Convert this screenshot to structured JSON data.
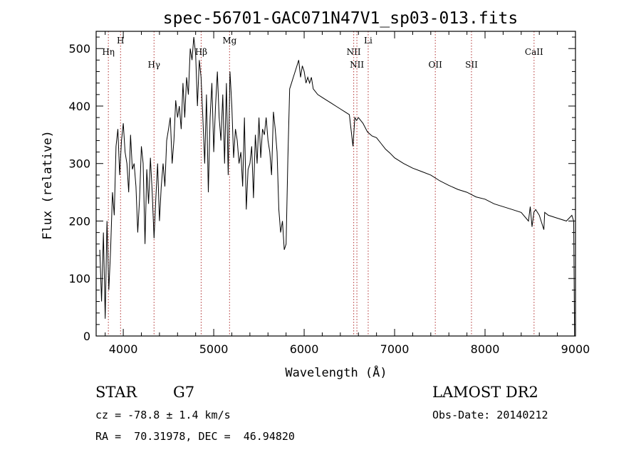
{
  "chart_data": {
    "type": "line",
    "title": "spec-56701-GAC071N47V1_sp03-013.fits",
    "xlabel": "Wavelength (Å)",
    "ylabel": "Flux (relative)",
    "xlim": [
      3700,
      9000
    ],
    "ylim": [
      0,
      530
    ],
    "x_ticks": [
      4000,
      5000,
      6000,
      7000,
      8000,
      9000
    ],
    "y_ticks": [
      0,
      100,
      200,
      300,
      400,
      500
    ],
    "grid": false,
    "line_color": "#000000",
    "marker_color": "#b03030",
    "series": [
      {
        "x": [
          3740,
          3760,
          3780,
          3800,
          3820,
          3840,
          3860,
          3880,
          3900,
          3920,
          3940,
          3960,
          3980,
          4000,
          4020,
          4040,
          4060,
          4080,
          4100,
          4120,
          4140,
          4160,
          4180,
          4200,
          4220,
          4240,
          4260,
          4280,
          4300,
          4320,
          4340,
          4360,
          4380,
          4400,
          4420,
          4440,
          4460,
          4480,
          4500,
          4520,
          4540,
          4560,
          4580,
          4600,
          4620,
          4640,
          4660,
          4680,
          4700,
          4720,
          4740,
          4760,
          4780,
          4800,
          4820,
          4840,
          4860,
          4880,
          4900,
          4920,
          4940,
          4960,
          4980,
          5000,
          5020,
          5040,
          5060,
          5080,
          5100,
          5120,
          5140,
          5160,
          5180,
          5200,
          5220,
          5240,
          5260,
          5280,
          5300,
          5320,
          5340,
          5360,
          5380,
          5400,
          5420,
          5440,
          5460,
          5480,
          5500,
          5520,
          5540,
          5560,
          5580,
          5600,
          5620,
          5640,
          5660,
          5680,
          5700,
          5720,
          5740,
          5760,
          5780,
          5800,
          5820,
          5840,
          5860,
          5880,
          5900,
          5920,
          5940,
          5960,
          5980,
          6000,
          6020,
          6040,
          6060,
          6080,
          6100,
          6150,
          6200,
          6250,
          6300,
          6350,
          6400,
          6450,
          6500,
          6540,
          6560,
          6580,
          6600,
          6650,
          6700,
          6750,
          6800,
          6850,
          6900,
          6950,
          7000,
          7100,
          7200,
          7300,
          7400,
          7500,
          7600,
          7700,
          7800,
          7900,
          8000,
          8100,
          8200,
          8300,
          8400,
          8480,
          8500,
          8520,
          8540,
          8560,
          8600,
          8650,
          8660,
          8700,
          8800,
          8900,
          8960,
          8980,
          8990,
          9000
        ],
        "values": [
          150,
          60,
          180,
          30,
          200,
          80,
          150,
          250,
          210,
          330,
          360,
          280,
          340,
          370,
          320,
          300,
          250,
          350,
          290,
          300,
          260,
          180,
          240,
          330,
          300,
          160,
          290,
          230,
          310,
          250,
          170,
          240,
          300,
          200,
          260,
          300,
          260,
          340,
          360,
          380,
          300,
          340,
          410,
          380,
          400,
          360,
          440,
          380,
          450,
          420,
          500,
          480,
          520,
          490,
          400,
          480,
          450,
          380,
          300,
          420,
          250,
          380,
          440,
          320,
          400,
          460,
          380,
          340,
          420,
          300,
          440,
          280,
          460,
          400,
          310,
          360,
          340,
          300,
          320,
          260,
          380,
          220,
          290,
          300,
          330,
          240,
          350,
          300,
          380,
          310,
          360,
          350,
          380,
          340,
          320,
          280,
          390,
          360,
          320,
          220,
          180,
          200,
          150,
          160,
          310,
          430,
          440,
          450,
          460,
          470,
          480,
          450,
          470,
          460,
          440,
          450,
          440,
          450,
          430,
          420,
          415,
          410,
          405,
          400,
          395,
          390,
          385,
          330,
          380,
          375,
          380,
          370,
          355,
          348,
          345,
          335,
          325,
          318,
          310,
          300,
          292,
          286,
          280,
          270,
          262,
          255,
          250,
          242,
          238,
          230,
          225,
          220,
          215,
          200,
          225,
          190,
          215,
          220,
          210,
          185,
          215,
          210,
          205,
          200,
          210,
          200,
          0,
          0
        ]
      }
    ],
    "line_markers": [
      {
        "label": "Hη",
        "x": 3835,
        "row": 1
      },
      {
        "label": "H",
        "x": 3970,
        "row": 0
      },
      {
        "label": "Hγ",
        "x": 4340,
        "row": 2
      },
      {
        "label": "Hβ",
        "x": 4861,
        "row": 1
      },
      {
        "label": "Mg",
        "x": 5175,
        "row": 0
      },
      {
        "label": "NII",
        "x": 6548,
        "row": 1
      },
      {
        "label": "NII",
        "x": 6583,
        "row": 2
      },
      {
        "label": "Li",
        "x": 6708,
        "row": 0
      },
      {
        "label": "OII",
        "x": 7450,
        "row": 2
      },
      {
        "label": "SII",
        "x": 7850,
        "row": 2
      },
      {
        "label": "CaII",
        "x": 8542,
        "row": 1
      }
    ]
  },
  "info": {
    "class_label": "STAR",
    "subclass": "G7",
    "survey": "LAMOST DR2",
    "velocity": "cz = -78.8 ± 1.4 km/s",
    "obs_date": "Obs-Date: 20140212",
    "coords": "RA =  70.31978, DEC =  46.94820"
  }
}
